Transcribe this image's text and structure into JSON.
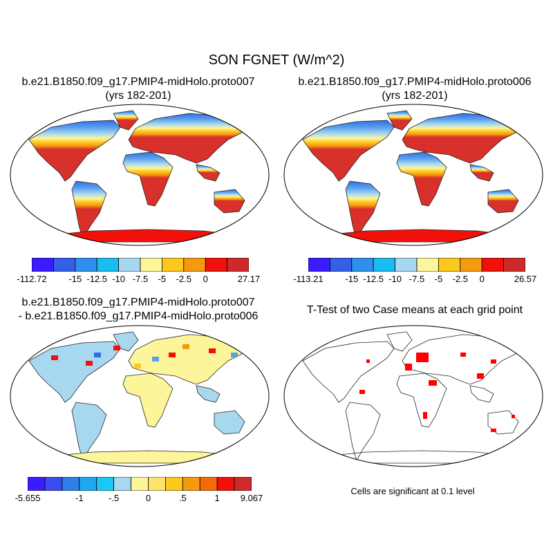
{
  "figure": {
    "title": "SON FGNET (W/m^2)"
  },
  "panels": {
    "p1": {
      "title_line1": "b.e21.B1850.f09_g17.PMIP4-midHolo.proto007",
      "title_line2": "(yrs 182-201)"
    },
    "p2": {
      "title_line1": "b.e21.B1850.f09_g17.PMIP4-midHolo.proto006",
      "title_line2": "(yrs 182-201)"
    },
    "p3": {
      "title_line1": "b.e21.B1850.f09_g17.PMIP4-midHolo.proto007",
      "title_line2": "- b.e21.B1850.f09_g17.PMIP4-midHolo.proto006"
    },
    "p4": {
      "title_line1": "T-Test of two Case means at each grid point",
      "note": "Cells are significant at 0.1 level"
    }
  },
  "colorbars": {
    "cb1": {
      "colors": [
        "#3b1bff",
        "#3560e6",
        "#2f8fec",
        "#1bbdf0",
        "#a8d8f0",
        "#fdf59a",
        "#fdc91f",
        "#f59a0e",
        "#f2100a",
        "#cf2a2a"
      ],
      "labels": [
        "-112.72",
        "-15",
        "-12.5",
        "-10",
        "-7.5",
        "-5",
        "-2.5",
        "0",
        "27.17"
      ]
    },
    "cb2": {
      "colors": [
        "#3b1bff",
        "#3560e6",
        "#2f8fec",
        "#1bbdf0",
        "#a8d8f0",
        "#fdf59a",
        "#fdc91f",
        "#f59a0e",
        "#f2100a",
        "#cf2a2a"
      ],
      "labels": [
        "-113.21",
        "-15",
        "-12.5",
        "-10",
        "-7.5",
        "-5",
        "-2.5",
        "0",
        "26.57"
      ]
    },
    "cb3": {
      "colors": [
        "#3b1bff",
        "#3a4cf0",
        "#2f7fe8",
        "#1fa7f0",
        "#1bc8f5",
        "#a8d8f0",
        "#fdf59a",
        "#fde36a",
        "#fdc91f",
        "#f59a0e",
        "#f26a0a",
        "#f2100a",
        "#cf2a2a"
      ],
      "labels": [
        "-5.655",
        "-1",
        "-.5",
        "0",
        ".5",
        "1",
        "9.067"
      ]
    }
  },
  "map_colors": {
    "polar": "#2e6ee6",
    "cold": "#5aa0ee",
    "cool": "#a8d8f0",
    "mild": "#fdf59a",
    "warm": "#fdc91f",
    "hot": "#f59a0e",
    "tropic": "#d8302a",
    "antarctic": "#f2100a",
    "diff_base": "#a8d8f0",
    "diff_pos": "#fdf59a",
    "diff_hot": "#f2100a",
    "signif": "#ff0000"
  }
}
